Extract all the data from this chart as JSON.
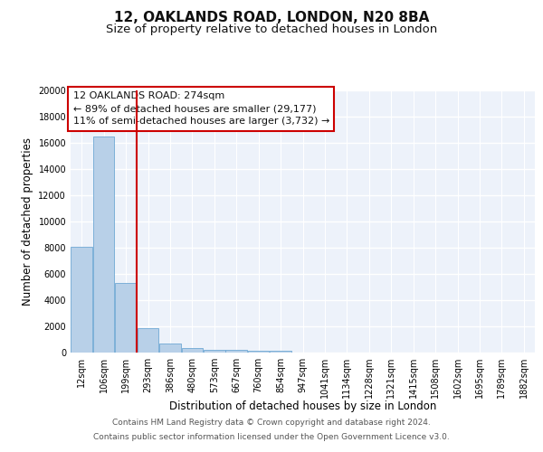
{
  "title": "12, OAKLANDS ROAD, LONDON, N20 8BA",
  "subtitle": "Size of property relative to detached houses in London",
  "xlabel": "Distribution of detached houses by size in London",
  "ylabel": "Number of detached properties",
  "categories": [
    "12sqm",
    "106sqm",
    "199sqm",
    "293sqm",
    "386sqm",
    "480sqm",
    "573sqm",
    "667sqm",
    "760sqm",
    "854sqm",
    "947sqm",
    "1041sqm",
    "1134sqm",
    "1228sqm",
    "1321sqm",
    "1415sqm",
    "1508sqm",
    "1602sqm",
    "1695sqm",
    "1789sqm",
    "1882sqm"
  ],
  "values": [
    8100,
    16500,
    5300,
    1850,
    700,
    320,
    230,
    200,
    170,
    150,
    0,
    0,
    0,
    0,
    0,
    0,
    0,
    0,
    0,
    0,
    0
  ],
  "bar_color": "#b8d0e8",
  "bar_edge_color": "#6fa8d4",
  "vline_x": 2.5,
  "vline_color": "#cc0000",
  "annotation_title": "12 OAKLANDS ROAD: 274sqm",
  "annotation_line1": "← 89% of detached houses are smaller (29,177)",
  "annotation_line2": "11% of semi-detached houses are larger (3,732) →",
  "annotation_box_color": "#ffffff",
  "annotation_border_color": "#cc0000",
  "ylim": [
    0,
    20000
  ],
  "yticks": [
    0,
    2000,
    4000,
    6000,
    8000,
    10000,
    12000,
    14000,
    16000,
    18000,
    20000
  ],
  "footer_line1": "Contains HM Land Registry data © Crown copyright and database right 2024.",
  "footer_line2": "Contains public sector information licensed under the Open Government Licence v3.0.",
  "bg_color": "#edf2fa",
  "grid_color": "#ffffff",
  "title_fontsize": 11,
  "subtitle_fontsize": 9.5,
  "label_fontsize": 8.5,
  "tick_fontsize": 7,
  "footer_fontsize": 6.5,
  "annotation_fontsize": 8
}
